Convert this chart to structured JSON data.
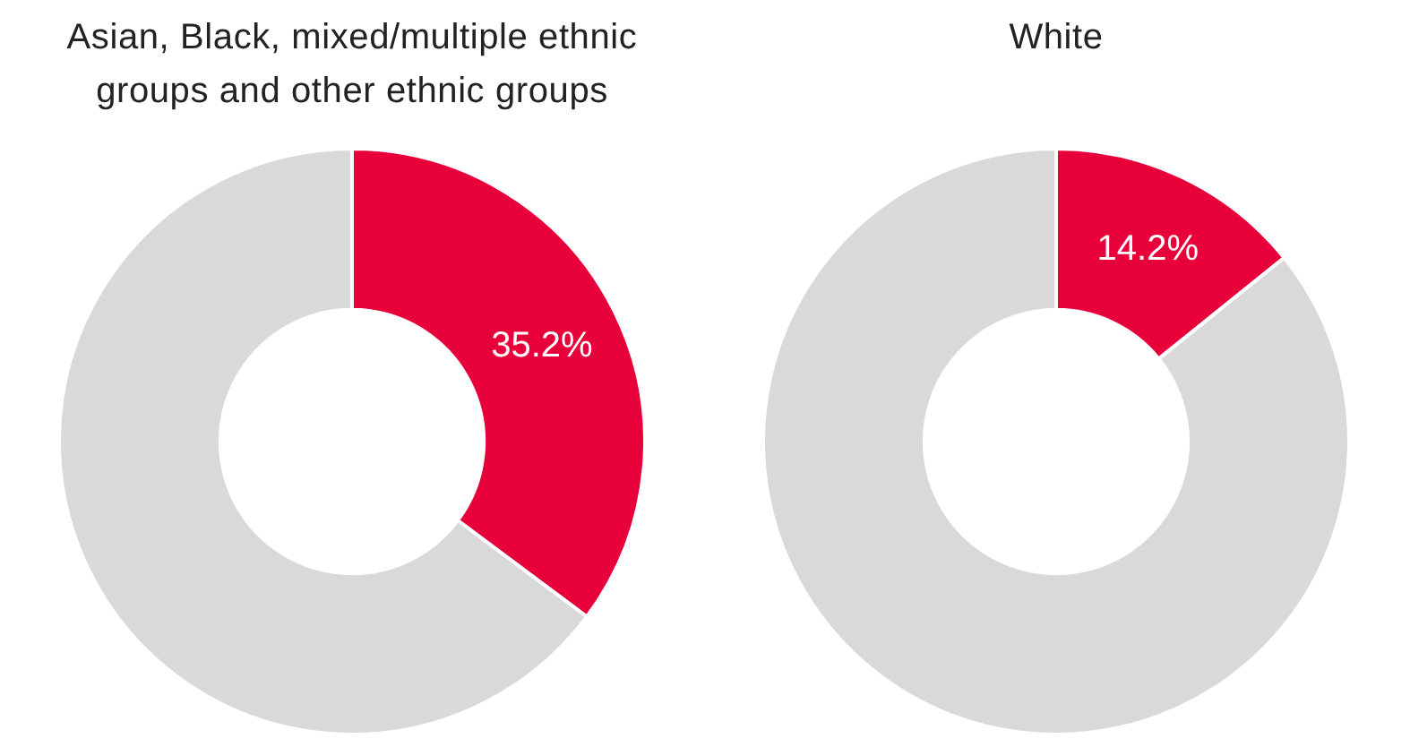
{
  "chart_data": [
    {
      "type": "donut",
      "title": "Asian, Black, mixed/multiple ethnic groups and other ethnic groups",
      "categories": [
        null,
        null
      ],
      "values": [
        35.2,
        64.8
      ],
      "colors": [
        "#e8003b",
        "#d9d9d9"
      ],
      "value_labels": [
        "35.2%",
        null
      ]
    },
    {
      "type": "donut",
      "title": "White",
      "categories": [
        null,
        null
      ],
      "values": [
        14.2,
        85.8
      ],
      "colors": [
        "#e8003b",
        "#d9d9d9"
      ],
      "value_labels": [
        "14.2%",
        null
      ]
    }
  ]
}
